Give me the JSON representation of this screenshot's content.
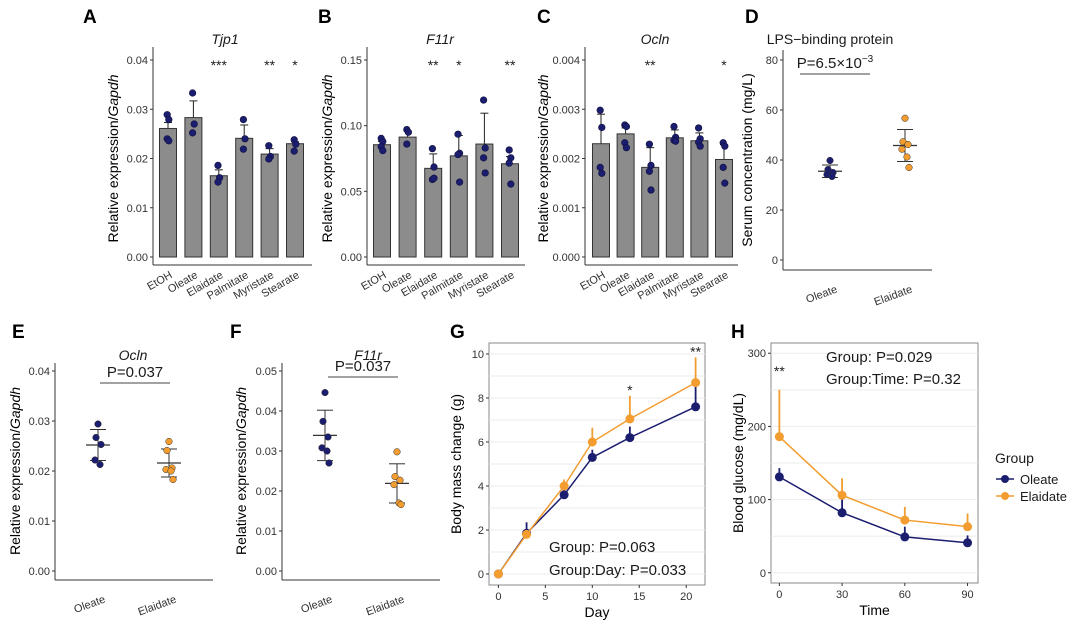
{
  "colors": {
    "oleate": "#1b1d6e",
    "elaidate": "#f39c2f",
    "bar": "#8c8c8c",
    "grid": "#ebebeb",
    "axis": "#333333"
  },
  "chart_data": [
    {
      "id": "A",
      "letter": "A",
      "type": "bar",
      "title": "Tjp1",
      "title_italic": true,
      "ylabel_plain": "Relative expression/",
      "ylabel_italic": "Gapdh",
      "categories": [
        "EtOH",
        "Oleate",
        "Elaidate",
        "Palmitate",
        "Myristate",
        "Stearate"
      ],
      "values": [
        0.0261,
        0.0283,
        0.0165,
        0.0241,
        0.0209,
        0.023
      ],
      "error_upper": [
        0.0273,
        0.0317,
        0.0177,
        0.0268,
        0.022,
        0.0234
      ],
      "points": [
        [
          0.0289,
          0.0279,
          0.024,
          0.0236
        ],
        [
          0.0333,
          0.027,
          0.0252
        ],
        [
          0.0186,
          0.0161,
          0.0152
        ],
        [
          0.0279,
          0.024,
          0.0219
        ],
        [
          0.0226,
          0.0204,
          0.0199
        ],
        [
          0.0238,
          0.0229,
          0.0215
        ]
      ],
      "significance": [
        "",
        "",
        "***",
        "",
        "**",
        "*"
      ],
      "yticks": [
        "0.00",
        "0.01",
        "0.02",
        "0.03",
        "0.04"
      ],
      "ylim": [
        0,
        0.04
      ]
    },
    {
      "id": "B",
      "letter": "B",
      "type": "bar",
      "title": "F11r",
      "title_italic": true,
      "ylabel_plain": "Relative expression/",
      "ylabel_italic": "Gapdh",
      "categories": [
        "EtOH",
        "Oleate",
        "Elaidate",
        "Palmitate",
        "Myristate",
        "Stearate"
      ],
      "values": [
        0.0855,
        0.0913,
        0.0675,
        0.077,
        0.086,
        0.071
      ],
      "error_upper": [
        0.088,
        0.096,
        0.0785,
        0.0925,
        0.1095,
        0.0765
      ],
      "points": [
        [
          0.0903,
          0.088,
          0.084,
          0.081
        ],
        [
          0.097,
          0.095,
          0.086
        ],
        [
          0.0825,
          0.0685,
          0.059,
          0.06
        ],
        [
          0.0935,
          0.079,
          0.078,
          0.057
        ],
        [
          0.1195,
          0.083,
          0.0755,
          0.064
        ],
        [
          0.0815,
          0.0755,
          0.0715,
          0.0555
        ]
      ],
      "significance": [
        "",
        "",
        "**",
        "*",
        "",
        "**"
      ],
      "yticks": [
        "0.00",
        "0.05",
        "0.10",
        "0.15"
      ],
      "ylim": [
        0,
        0.15
      ]
    },
    {
      "id": "C",
      "letter": "C",
      "type": "bar",
      "title": "Ocln",
      "title_italic": true,
      "ylabel_plain": "Relative expression/",
      "ylabel_italic": "Gapdh",
      "categories": [
        "EtOH",
        "Oleate",
        "Elaidate",
        "Palmitate",
        "Myristate",
        "Stearate"
      ],
      "values": [
        0.0023,
        0.0025,
        0.00182,
        0.00242,
        0.00236,
        0.00198
      ],
      "error_upper": [
        0.0029,
        0.00262,
        0.00222,
        0.00258,
        0.00252,
        0.00228
      ],
      "points": [
        [
          0.00298,
          0.00263,
          0.00182,
          0.0017
        ],
        [
          0.00268,
          0.00265,
          0.00232,
          0.00222
        ],
        [
          0.00229,
          0.00186,
          0.00174,
          0.00136
        ],
        [
          0.00265,
          0.00243,
          0.00237,
          0.00235
        ],
        [
          0.00262,
          0.0024,
          0.00233,
          0.00225
        ],
        [
          0.00232,
          0.00225,
          0.00182,
          0.0015
        ]
      ],
      "significance": [
        "",
        "",
        "**",
        "",
        "",
        "*"
      ],
      "yticks": [
        "0.000",
        "0.001",
        "0.002",
        "0.003",
        "0.004"
      ],
      "ylim": [
        0,
        0.004
      ]
    },
    {
      "id": "D",
      "letter": "D",
      "type": "scatter",
      "title": "LPS−binding protein",
      "title_italic": false,
      "ylabel_plain": "Serum concentration (mg/L)",
      "ylabel_italic": "",
      "categories": [
        "Oleate",
        "Elaidate"
      ],
      "means": [
        35.5,
        45.8
      ],
      "sd_upper": [
        38.0,
        52.2
      ],
      "sd_lower": [
        33.0,
        39.4
      ],
      "points": [
        [
          39.8,
          36.2,
          35.0,
          34.2,
          33.4
        ],
        [
          56.7,
          47.3,
          46.2,
          44.3,
          41.2,
          37.0
        ]
      ],
      "pvalue_label": "P=6.5×10",
      "pvalue_exp": "−3",
      "yticks": [
        "0",
        "20",
        "40",
        "60",
        "80"
      ],
      "ylim": [
        0,
        80
      ]
    },
    {
      "id": "E",
      "letter": "E",
      "type": "scatter",
      "title": "Ocln",
      "title_italic": true,
      "ylabel_plain": "Relative expression/",
      "ylabel_italic": "Gapdh",
      "categories": [
        "Oleate",
        "Elaidate"
      ],
      "means": [
        0.0252,
        0.0216
      ],
      "sd_upper": [
        0.0283,
        0.0244
      ],
      "sd_lower": [
        0.0221,
        0.0188
      ],
      "points": [
        [
          0.0294,
          0.0267,
          0.0253,
          0.0222,
          0.0213
        ],
        [
          0.0259,
          0.0241,
          0.0206,
          0.0203,
          0.02,
          0.0183
        ]
      ],
      "pvalue_label": "P=0.037",
      "pvalue_exp": "",
      "yticks": [
        "0.00",
        "0.01",
        "0.02",
        "0.03",
        "0.04"
      ],
      "ylim": [
        0,
        0.04
      ]
    },
    {
      "id": "F",
      "letter": "F",
      "type": "scatter",
      "title": "F11r",
      "title_italic": true,
      "ylabel_plain": "Relative expression/",
      "ylabel_italic": "Gapdh",
      "categories": [
        "Oleate",
        "Elaidate"
      ],
      "means": [
        0.0339,
        0.0219
      ],
      "sd_upper": [
        0.0402,
        0.0268
      ],
      "sd_lower": [
        0.0276,
        0.017
      ],
      "points": [
        [
          0.0446,
          0.0374,
          0.0335,
          0.0308,
          0.03,
          0.027
        ],
        [
          0.0298,
          0.0236,
          0.0227,
          0.0216,
          0.017,
          0.0166
        ]
      ],
      "pvalue_label": "P=0.037",
      "pvalue_exp": "",
      "yticks": [
        "0.00",
        "0.01",
        "0.02",
        "0.03",
        "0.04",
        "0.05"
      ],
      "ylim": [
        0,
        0.05
      ]
    },
    {
      "id": "G",
      "letter": "G",
      "type": "line",
      "xlabel": "Day",
      "ylabel": "Body mass change (g)",
      "x": [
        0,
        3,
        7,
        10,
        14,
        21
      ],
      "series": [
        {
          "name": "Oleate",
          "values": [
            0,
            1.85,
            3.6,
            5.3,
            6.2,
            7.6
          ],
          "error_upper": [
            0,
            2.35,
            3.95,
            5.65,
            6.7,
            8.65
          ]
        },
        {
          "name": "Elaidate",
          "values": [
            0,
            1.8,
            4.0,
            6.0,
            7.05,
            8.7
          ],
          "error_upper": [
            0,
            2.0,
            4.3,
            6.65,
            8.1,
            9.85
          ]
        }
      ],
      "significance": [
        {
          "x": 14,
          "label": "*"
        },
        {
          "x": 21,
          "label": "**"
        }
      ],
      "annotations": [
        "Group: P=0.063",
        "Group:Day: P=0.033"
      ],
      "xticks": [
        "0",
        "5",
        "10",
        "15",
        "20"
      ],
      "yticks": [
        "0",
        "2",
        "4",
        "6",
        "8",
        "10"
      ],
      "xlim": [
        -1,
        22
      ],
      "ylim": [
        -0.5,
        10.5
      ],
      "grid": true
    },
    {
      "id": "H",
      "letter": "H",
      "type": "line",
      "xlabel": "Time",
      "ylabel": "Blood glucose (mg/dL)",
      "x": [
        0,
        30,
        60,
        90
      ],
      "series": [
        {
          "name": "Oleate",
          "values": [
            131,
            82,
            49,
            41
          ],
          "error_upper": [
            143,
            105,
            63,
            51
          ]
        },
        {
          "name": "Elaidate",
          "values": [
            186,
            106,
            72,
            63
          ],
          "error_upper": [
            250,
            129,
            90,
            81
          ]
        }
      ],
      "significance": [
        {
          "x": 0,
          "label": "**"
        }
      ],
      "annotations": [
        "Group: P=0.029",
        "Group:Time: P=0.32"
      ],
      "xticks": [
        "0",
        "30",
        "60",
        "90"
      ],
      "yticks": [
        "0",
        "100",
        "200",
        "300"
      ],
      "xlim": [
        -4,
        95
      ],
      "ylim": [
        -14,
        314
      ],
      "grid": true,
      "legend": {
        "title": "Group",
        "entries": [
          "Oleate",
          "Elaidate"
        ],
        "position": "right"
      }
    }
  ]
}
